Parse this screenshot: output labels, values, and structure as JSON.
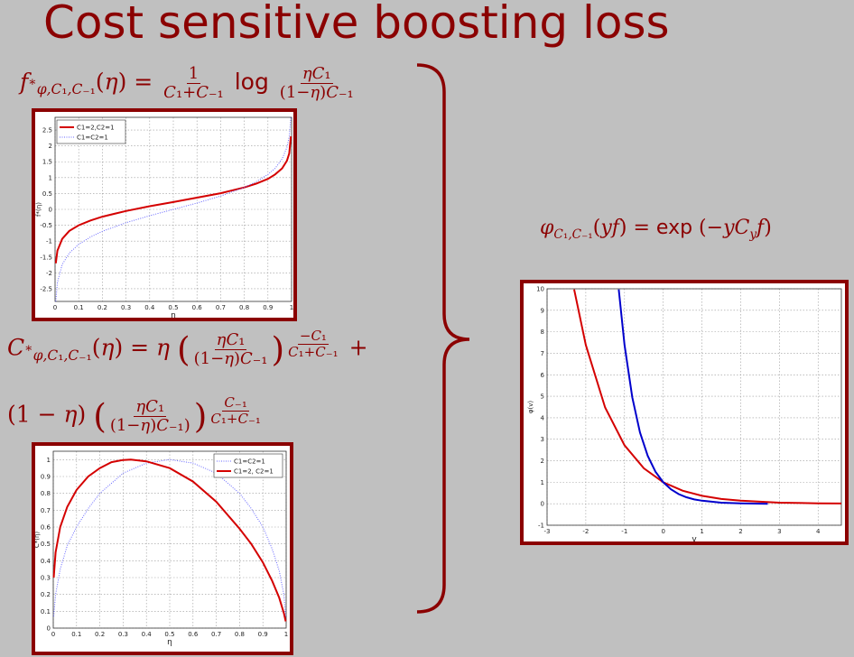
{
  "title": "Cost sensitive boosting loss",
  "eq_f": {
    "lhs_sub": "φ,C1,C−1",
    "log": "log"
  },
  "eq_c_plus": "+",
  "eq_phi": {
    "exp": "exp"
  },
  "chart_data": [
    {
      "type": "line",
      "xlabel": "η",
      "ylabel": "f*(η)",
      "xlim": [
        0,
        1
      ],
      "ylim": [
        -2.9,
        2.9
      ],
      "xticks": [
        "0",
        "0.1",
        "0.2",
        "0.3",
        "0.4",
        "0.5",
        "0.6",
        "0.7",
        "0.8",
        "0.9",
        "1"
      ],
      "yticks": [
        "-2.5",
        "-2",
        "-1.5",
        "-1",
        "-0.5",
        "0",
        "0.5",
        "1",
        "1.5",
        "2",
        "2.5"
      ],
      "grid": true,
      "legend_position": "top-left",
      "series": [
        {
          "name": "C1=2,C2=1",
          "color": "#d40000",
          "style": "solid",
          "x": [
            0.003,
            0.01,
            0.03,
            0.06,
            0.1,
            0.15,
            0.2,
            0.3,
            0.4,
            0.5,
            0.6,
            0.7,
            0.8,
            0.85,
            0.9,
            0.93,
            0.96,
            0.98,
            0.99,
            0.997
          ],
          "y": [
            -1.7,
            -1.3,
            -0.93,
            -0.68,
            -0.5,
            -0.35,
            -0.23,
            -0.05,
            0.1,
            0.23,
            0.37,
            0.51,
            0.69,
            0.81,
            0.96,
            1.1,
            1.29,
            1.53,
            1.76,
            2.3
          ]
        },
        {
          "name": "C1=C2=1",
          "color": "#6666ff",
          "style": "dotted",
          "x": [
            0.003,
            0.01,
            0.03,
            0.06,
            0.1,
            0.15,
            0.2,
            0.3,
            0.4,
            0.5,
            0.6,
            0.7,
            0.8,
            0.85,
            0.9,
            0.93,
            0.96,
            0.98,
            0.99,
            0.997
          ],
          "y": [
            -2.9,
            -2.3,
            -1.74,
            -1.38,
            -1.1,
            -0.87,
            -0.69,
            -0.42,
            -0.2,
            0.0,
            0.2,
            0.42,
            0.69,
            0.87,
            1.1,
            1.29,
            1.59,
            1.95,
            2.3,
            2.9
          ]
        }
      ]
    },
    {
      "type": "line",
      "xlabel": "η",
      "ylabel": "C*(η)",
      "xlim": [
        0,
        1
      ],
      "ylim": [
        0,
        1.05
      ],
      "xticks": [
        "0",
        "0.1",
        "0.2",
        "0.3",
        "0.4",
        "0.5",
        "0.6",
        "0.7",
        "0.8",
        "0.9",
        "1"
      ],
      "yticks": [
        "0",
        "0.1",
        "0.2",
        "0.3",
        "0.4",
        "0.5",
        "0.6",
        "0.7",
        "0.8",
        "0.9",
        "1"
      ],
      "grid": true,
      "legend_position": "top-right",
      "series": [
        {
          "name": "C1=C2=1",
          "color": "#6666ff",
          "style": "dotted",
          "x": [
            0.002,
            0.01,
            0.03,
            0.06,
            0.1,
            0.15,
            0.2,
            0.3,
            0.4,
            0.5,
            0.6,
            0.7,
            0.8,
            0.85,
            0.9,
            0.94,
            0.97,
            0.99,
            0.998
          ],
          "y": [
            0.07,
            0.2,
            0.35,
            0.49,
            0.6,
            0.71,
            0.8,
            0.92,
            0.98,
            1.0,
            0.98,
            0.92,
            0.8,
            0.71,
            0.6,
            0.47,
            0.34,
            0.2,
            0.07
          ]
        },
        {
          "name": "C1=2, C2=1",
          "color": "#d40000",
          "style": "solid",
          "x": [
            0.002,
            0.01,
            0.03,
            0.06,
            0.1,
            0.15,
            0.2,
            0.25,
            0.3,
            0.333,
            0.4,
            0.5,
            0.6,
            0.7,
            0.8,
            0.85,
            0.9,
            0.94,
            0.97,
            0.99,
            0.998
          ],
          "y": [
            0.3,
            0.45,
            0.6,
            0.72,
            0.82,
            0.9,
            0.95,
            0.985,
            0.998,
            1.0,
            0.99,
            0.95,
            0.87,
            0.75,
            0.59,
            0.5,
            0.39,
            0.28,
            0.18,
            0.09,
            0.04
          ]
        }
      ]
    },
    {
      "type": "line",
      "xlabel": "v",
      "ylabel": "φ(v)",
      "xlim": [
        -3,
        4.6
      ],
      "ylim": [
        -1,
        10
      ],
      "xticks": [
        "-3",
        "-2",
        "-1",
        "0",
        "1",
        "2",
        "3",
        "4"
      ],
      "yticks": [
        "-1",
        "0",
        "1",
        "2",
        "3",
        "4",
        "5",
        "6",
        "7",
        "8",
        "9",
        "10"
      ],
      "grid": true,
      "series": [
        {
          "color": "#d40000",
          "style": "solid",
          "x": [
            -2.3,
            -2.0,
            -1.5,
            -1.0,
            -0.5,
            0.0,
            0.5,
            1.0,
            1.5,
            2.0,
            3.0,
            4.0,
            4.6
          ],
          "y": [
            9.97,
            7.39,
            4.48,
            2.72,
            1.65,
            1.0,
            0.61,
            0.37,
            0.22,
            0.14,
            0.05,
            0.02,
            0.01
          ]
        },
        {
          "color": "#0000cc",
          "style": "solid",
          "x": [
            -1.15,
            -1.0,
            -0.8,
            -0.6,
            -0.4,
            -0.2,
            0.0,
            0.2,
            0.4,
            0.6,
            0.8,
            1.0,
            1.5,
            2.0,
            2.7
          ],
          "y": [
            9.97,
            7.39,
            4.95,
            3.32,
            2.23,
            1.49,
            1.0,
            0.67,
            0.45,
            0.3,
            0.2,
            0.14,
            0.05,
            0.02,
            0.0
          ]
        }
      ]
    }
  ]
}
